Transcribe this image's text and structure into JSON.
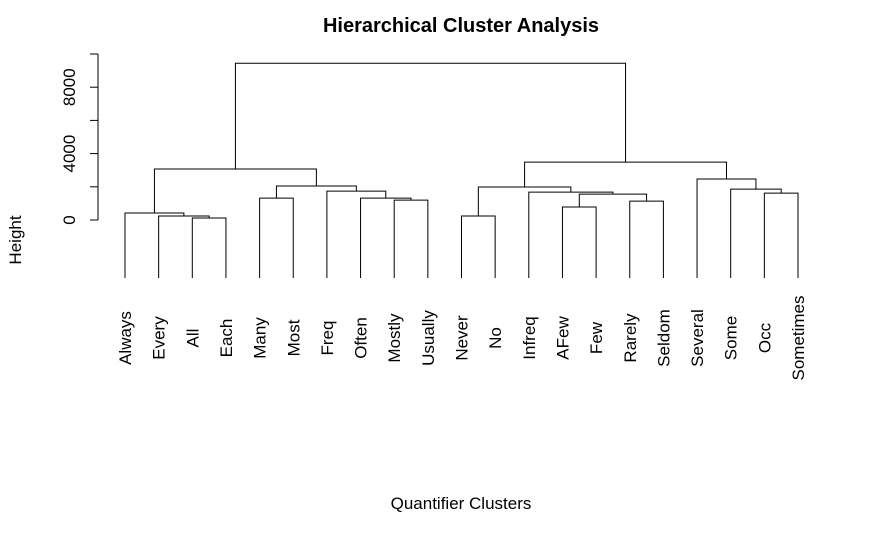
{
  "chart_data": {
    "type": "dendrogram",
    "title": "Hierarchical Cluster Analysis",
    "x_label": "Quantifier Clusters",
    "y_label": "Height",
    "labels": [
      "Always",
      "Every",
      "All",
      "Each",
      "Many",
      "Most",
      "Freq",
      "Often",
      "Mostly",
      "Usually",
      "Never",
      "No",
      "Infreq",
      "AFew",
      "Few",
      "Rarely",
      "Seldom",
      "Several",
      "Some",
      "Occ",
      "Sometimes"
    ],
    "merges": [
      {
        "left": -3,
        "right": -4,
        "height": 120
      },
      {
        "left": -2,
        "right": 1,
        "height": 240
      },
      {
        "left": -1,
        "right": 2,
        "height": 420
      },
      {
        "left": -11,
        "right": -12,
        "height": 240
      },
      {
        "left": -14,
        "right": -15,
        "height": 780
      },
      {
        "left": -16,
        "right": -17,
        "height": 1140
      },
      {
        "left": -9,
        "right": -10,
        "height": 1200
      },
      {
        "left": -5,
        "right": -6,
        "height": 1320
      },
      {
        "left": -8,
        "right": 7,
        "height": 1320
      },
      {
        "left": 5,
        "right": 6,
        "height": 1560
      },
      {
        "left": -20,
        "right": -21,
        "height": 1620
      },
      {
        "left": -13,
        "right": 10,
        "height": 1680
      },
      {
        "left": -7,
        "right": 9,
        "height": 1740
      },
      {
        "left": -19,
        "right": 11,
        "height": 1860
      },
      {
        "left": 4,
        "right": 12,
        "height": 1990
      },
      {
        "left": 8,
        "right": 13,
        "height": 2050
      },
      {
        "left": -18,
        "right": 14,
        "height": 2470
      },
      {
        "left": 3,
        "right": 16,
        "height": 3070
      },
      {
        "left": 15,
        "right": 17,
        "height": 3490
      },
      {
        "left": 18,
        "right": 19,
        "height": 9440
      }
    ],
    "color": "#000000",
    "ylim": [
      0,
      10000
    ],
    "yticks": [
      0,
      4000,
      8000
    ],
    "y_unlabeled_ticks": [
      2000,
      6000,
      10000
    ]
  }
}
